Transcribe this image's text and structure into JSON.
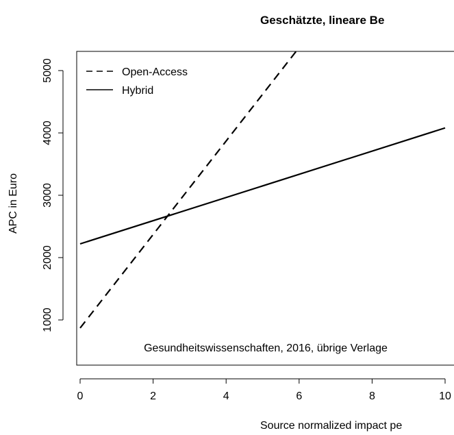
{
  "chart_data": {
    "type": "line",
    "title": "Geschätzte, lineare Be",
    "xlabel": "Source normalized impact pe",
    "ylabel": "APC in Euro",
    "annotation": "Gesundheitswissenschaften, 2016, übrige Verlage",
    "x": [
      0,
      10
    ],
    "series": [
      {
        "name": "Open-Access",
        "color": "#000000",
        "dash": true,
        "values": [
          870,
          8370
        ]
      },
      {
        "name": "Hybrid",
        "color": "#000000",
        "dash": false,
        "values": [
          2220,
          4080
        ]
      }
    ],
    "xlim": [
      -0.094,
      10.5
    ],
    "xticks": [
      0,
      2,
      4,
      6,
      8,
      10
    ],
    "ylim": [
      275,
      5308
    ],
    "yticks": [
      1000,
      2000,
      3000,
      4000,
      5000
    ],
    "legend": "top-left"
  }
}
